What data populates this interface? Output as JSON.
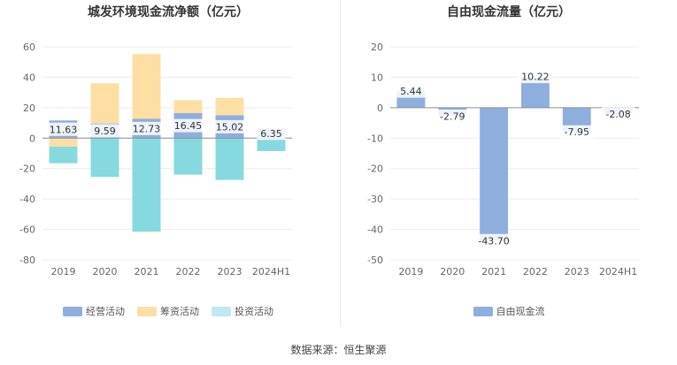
{
  "source": "数据来源：恒生聚源",
  "chart_data": [
    {
      "type": "bar",
      "stacked": true,
      "title": "城发环境现金流净额（亿元）",
      "categories": [
        "2019",
        "2020",
        "2021",
        "2022",
        "2023",
        "2024H1"
      ],
      "ylim": [
        -80,
        60
      ],
      "yticks": [
        60,
        40,
        20,
        0,
        -20,
        -40,
        -60,
        -80
      ],
      "legend_position": "bottom",
      "series": [
        {
          "name": "经营活动",
          "color": "#8eaedd",
          "values": [
            11.63,
            9.59,
            12.73,
            16.45,
            15.02,
            6.35
          ],
          "labels": [
            "11.63",
            "9.59",
            "12.73",
            "16.45",
            "15.02",
            "6.35"
          ]
        },
        {
          "name": "筹资活动",
          "color": "#fddfa4",
          "values": [
            -5.5,
            26.5,
            42.5,
            8.5,
            11.5,
            0
          ]
        },
        {
          "name": "投资活动",
          "color": "#86d9de",
          "values": [
            -11,
            -25.5,
            -61.5,
            -24,
            -27.5,
            -8.5
          ]
        }
      ]
    },
    {
      "type": "bar",
      "title": "自由现金流量（亿元）",
      "categories": [
        "2019",
        "2020",
        "2021",
        "2022",
        "2023",
        "2024H1"
      ],
      "ylim": [
        -50,
        20
      ],
      "yticks": [
        20,
        10,
        0,
        -10,
        -20,
        -30,
        -40,
        -50
      ],
      "legend_position": "bottom",
      "series": [
        {
          "name": "自由现金流",
          "color": "#8eaedd",
          "values": [
            5.44,
            -2.79,
            -43.7,
            10.22,
            -7.95,
            -2.08
          ],
          "labels": [
            "5.44",
            "-2.79",
            "-43.70",
            "10.22",
            "-7.95",
            "-2.08"
          ]
        }
      ]
    }
  ]
}
